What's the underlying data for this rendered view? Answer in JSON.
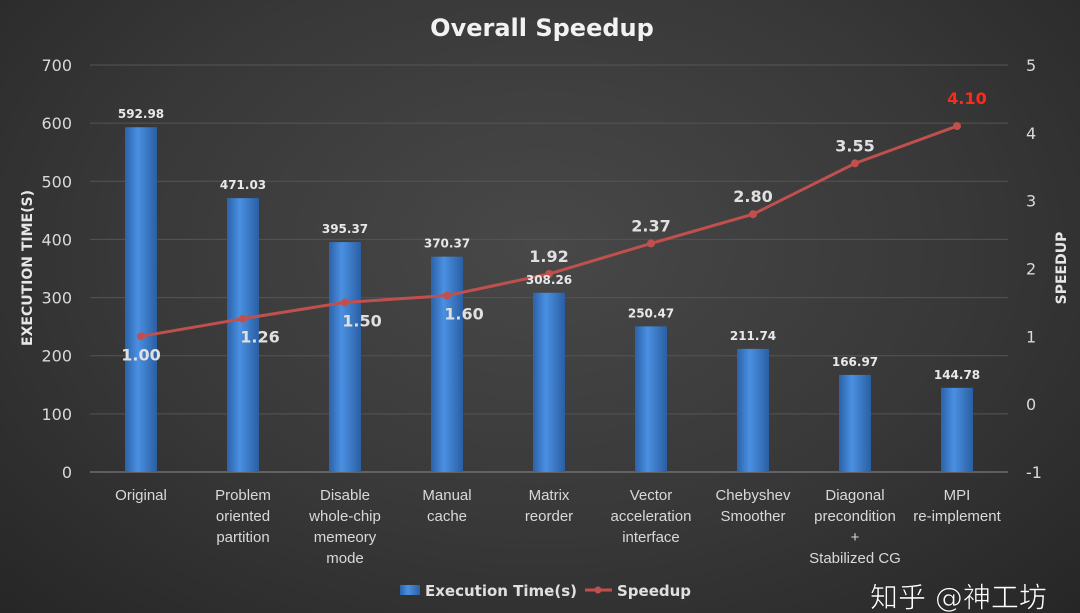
{
  "chart_data": {
    "type": "bar+line",
    "title": "Overall Speedup",
    "ylabel": "EXECUTION TIME(S)",
    "y2label": "SPEEDUP",
    "ylim": [
      0,
      700
    ],
    "y2lim": [
      -1,
      5
    ],
    "yticks": [
      "0",
      "100",
      "200",
      "300",
      "400",
      "500",
      "600",
      "700"
    ],
    "y2ticks": [
      "-1",
      "0",
      "1",
      "2",
      "3",
      "4",
      "5"
    ],
    "grid": true,
    "legend_position": "bottom",
    "categories": [
      [
        "Original"
      ],
      [
        "Problem",
        "oriented",
        "partition"
      ],
      [
        "Disable",
        "whole-chip",
        "memeory",
        "mode"
      ],
      [
        "Manual",
        "cache"
      ],
      [
        "Matrix",
        "reorder"
      ],
      [
        "Vector",
        "acceleration",
        "interface"
      ],
      [
        "Chebyshev",
        "Smoother"
      ],
      [
        "Diagonal",
        "precondition",
        "+",
        "Stabilized CG"
      ],
      [
        "MPI",
        "re-implement"
      ]
    ],
    "series": [
      {
        "name": "Execution Time(s)",
        "type": "bar",
        "axis": "left",
        "color": "#3b7fd4",
        "values": [
          592.98,
          471.03,
          395.37,
          370.37,
          308.26,
          250.47,
          211.74,
          166.97,
          144.78
        ],
        "labels": [
          "592.98",
          "471.03",
          "395.37",
          "370.37",
          "308.26",
          "250.47",
          "211.74",
          "166.97",
          "144.78"
        ]
      },
      {
        "name": "Speedup",
        "type": "line",
        "axis": "right",
        "color": "#c0504d",
        "values": [
          1.0,
          1.26,
          1.5,
          1.6,
          1.92,
          2.37,
          2.8,
          3.55,
          4.1
        ],
        "labels": [
          "1.00",
          "1.26",
          "1.50",
          "1.60",
          "1.92",
          "2.37",
          "2.80",
          "3.55",
          "4.10"
        ],
        "highlight_color": "#ff2a1a"
      }
    ]
  },
  "watermark": "知乎 @神工坊"
}
